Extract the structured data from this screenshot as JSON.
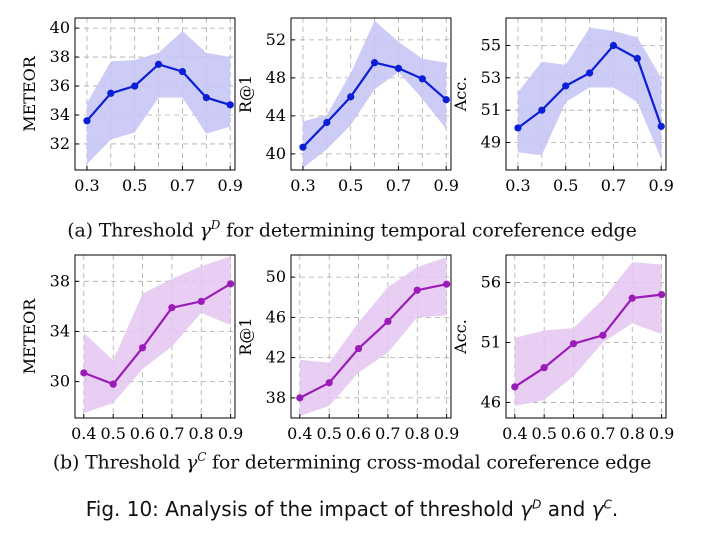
{
  "figure": {
    "row_a": {
      "prefix": "(a) Threshold",
      "symbol": "γ",
      "superscript": "D",
      "suffix": "for determining temporal coreference edge"
    },
    "row_b": {
      "prefix": "(b) Threshold",
      "symbol": "γ",
      "superscript": "C",
      "suffix": "for determining cross-modal coreference edge"
    },
    "caption": {
      "prefix": "Fig. 10: Analysis of the impact of threshold",
      "symbol1": "γ",
      "sup1": "D",
      "middle": "and",
      "symbol2": "γ",
      "sup2": "C",
      "end": "."
    }
  },
  "colors": {
    "blue_line": "#0b1fd6",
    "blue_band": "#c3c3f5",
    "purple_line": "#9a1bb8",
    "purple_band": "#e3c5f0",
    "grid": "#aaaaaa"
  },
  "chart_data": [
    {
      "id": "a-meteor",
      "type": "line",
      "row": "a",
      "ylabel": "METEOR",
      "x": [
        0.3,
        0.4,
        0.5,
        0.6,
        0.7,
        0.8,
        0.9
      ],
      "xticks": [
        0.3,
        0.5,
        0.7,
        0.9
      ],
      "xlim": [
        0.25,
        0.92
      ],
      "yticks": [
        32,
        34,
        36,
        38,
        40
      ],
      "ylim": [
        30.2,
        40.7
      ],
      "series": [
        {
          "values": [
            33.6,
            35.5,
            36.0,
            37.5,
            37.0,
            35.2,
            34.7
          ],
          "band_upper": [
            34.8,
            37.7,
            37.8,
            38.3,
            39.8,
            38.3,
            38.0
          ],
          "band_lower": [
            30.6,
            32.3,
            32.8,
            35.2,
            35.2,
            32.7,
            33.2
          ]
        }
      ],
      "colorKey": "blue",
      "grid": true
    },
    {
      "id": "a-r1",
      "type": "line",
      "row": "a",
      "ylabel": "R@1",
      "x": [
        0.3,
        0.4,
        0.5,
        0.6,
        0.7,
        0.8,
        0.9
      ],
      "xticks": [
        0.3,
        0.5,
        0.7,
        0.9
      ],
      "xlim": [
        0.25,
        0.92
      ],
      "yticks": [
        40,
        44,
        48,
        52
      ],
      "ylim": [
        38.3,
        54.3
      ],
      "series": [
        {
          "values": [
            40.7,
            43.3,
            46.0,
            49.6,
            49.0,
            47.9,
            45.7
          ],
          "band_upper": [
            43.4,
            44.1,
            48.5,
            54.0,
            51.8,
            50.0,
            49.6
          ],
          "band_lower": [
            38.5,
            40.5,
            43.0,
            46.8,
            48.6,
            45.8,
            42.6
          ]
        }
      ],
      "colorKey": "blue",
      "grid": true
    },
    {
      "id": "a-acc",
      "type": "line",
      "row": "a",
      "ylabel": "Acc.",
      "x": [
        0.3,
        0.4,
        0.5,
        0.6,
        0.7,
        0.8,
        0.9
      ],
      "xticks": [
        0.3,
        0.5,
        0.7,
        0.9
      ],
      "xlim": [
        0.25,
        0.92
      ],
      "yticks": [
        49,
        51,
        53,
        55
      ],
      "ylim": [
        47.3,
        56.7
      ],
      "series": [
        {
          "values": [
            49.9,
            51.0,
            52.5,
            53.3,
            55.0,
            54.2,
            50.0
          ],
          "band_upper": [
            52.1,
            54.0,
            53.8,
            56.1,
            55.9,
            55.5,
            53.0
          ],
          "band_lower": [
            48.4,
            48.2,
            51.5,
            52.4,
            52.4,
            51.5,
            48.0
          ]
        }
      ],
      "colorKey": "blue",
      "grid": true
    },
    {
      "id": "b-meteor",
      "type": "line",
      "row": "b",
      "ylabel": "METEOR",
      "x": [
        0.4,
        0.5,
        0.6,
        0.7,
        0.8,
        0.9
      ],
      "xticks": [
        0.4,
        0.5,
        0.6,
        0.7,
        0.8,
        0.9
      ],
      "xlim": [
        0.37,
        0.915
      ],
      "yticks": [
        30,
        34,
        38
      ],
      "ylim": [
        27.1,
        40.1
      ],
      "series": [
        {
          "values": [
            30.7,
            29.8,
            32.7,
            35.9,
            36.4,
            37.8
          ],
          "band_upper": [
            33.9,
            31.7,
            37.0,
            38.2,
            39.2,
            40.0
          ],
          "band_lower": [
            27.5,
            28.3,
            31.0,
            32.8,
            35.5,
            34.5
          ]
        }
      ],
      "colorKey": "purple",
      "grid": true
    },
    {
      "id": "b-r1",
      "type": "line",
      "row": "b",
      "ylabel": "R@1",
      "x": [
        0.4,
        0.5,
        0.6,
        0.7,
        0.8,
        0.9
      ],
      "xticks": [
        0.4,
        0.5,
        0.6,
        0.7,
        0.8,
        0.9
      ],
      "xlim": [
        0.37,
        0.915
      ],
      "yticks": [
        38,
        42,
        46,
        50
      ],
      "ylim": [
        36.0,
        52.2
      ],
      "series": [
        {
          "values": [
            38.0,
            39.5,
            42.9,
            45.6,
            48.7,
            49.3
          ],
          "band_upper": [
            41.8,
            41.5,
            45.5,
            49.0,
            51.0,
            52.0
          ],
          "band_lower": [
            36.2,
            37.2,
            40.5,
            42.5,
            46.0,
            46.2
          ]
        }
      ],
      "colorKey": "purple",
      "grid": true
    },
    {
      "id": "b-acc",
      "type": "line",
      "row": "b",
      "ylabel": "Acc.",
      "x": [
        0.4,
        0.5,
        0.6,
        0.7,
        0.8,
        0.9
      ],
      "xticks": [
        0.4,
        0.5,
        0.6,
        0.7,
        0.8,
        0.9
      ],
      "xlim": [
        0.37,
        0.915
      ],
      "yticks": [
        46,
        51,
        56
      ],
      "ylim": [
        44.7,
        58.3
      ],
      "series": [
        {
          "values": [
            47.3,
            48.9,
            50.9,
            51.6,
            54.7,
            55.0
          ],
          "band_upper": [
            51.4,
            52.0,
            52.2,
            54.6,
            57.7,
            57.5
          ],
          "band_lower": [
            45.7,
            46.2,
            48.2,
            51.0,
            52.6,
            51.7
          ]
        }
      ],
      "colorKey": "purple",
      "grid": true
    }
  ]
}
